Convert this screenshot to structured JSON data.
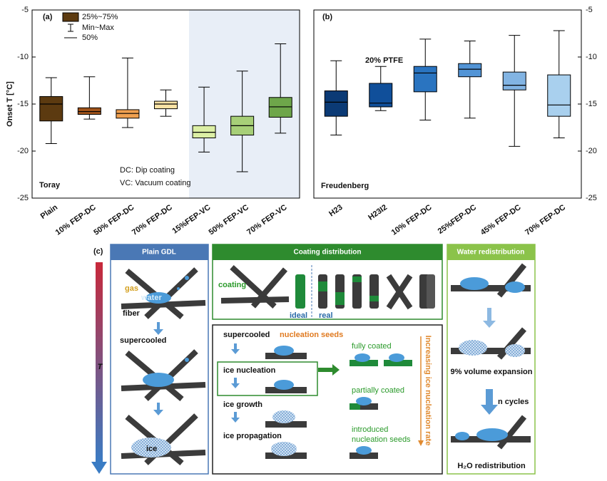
{
  "chart_data": [
    {
      "type": "box",
      "panel_label": "(a)",
      "ylabel": "Onset T [°C]",
      "label": "Toray",
      "notes": [
        "DC: Dip coating",
        "VC: Vacuum coating"
      ],
      "legend": [
        "25%~75%",
        "Min~Max",
        "50%"
      ],
      "categories": [
        "Plain",
        "10% FEP-DC",
        "50% FEP-DC",
        "70% FEP-DC",
        "15%FEP-VC",
        "50% FEP-VC",
        "70% FEP-VC"
      ],
      "boxes": [
        {
          "min": -19.2,
          "q1": -16.8,
          "median": -15.0,
          "q3": -14.2,
          "max": -12.2,
          "color": "#5c3a10"
        },
        {
          "min": -16.6,
          "q1": -16.1,
          "median": -15.8,
          "q3": -15.4,
          "max": -12.1,
          "color": "#a0531a"
        },
        {
          "min": -17.5,
          "q1": -16.5,
          "median": -16.0,
          "q3": -15.6,
          "max": -10.1,
          "color": "#f0a050"
        },
        {
          "min": -16.3,
          "q1": -15.5,
          "median": -15.0,
          "q3": -14.7,
          "max": -13.5,
          "color": "#fbe3a5"
        },
        {
          "min": -20.1,
          "q1": -18.6,
          "median": -18.0,
          "q3": -17.3,
          "max": -13.2,
          "color": "#dcefa5"
        },
        {
          "min": -22.2,
          "q1": -18.3,
          "median": -17.3,
          "q3": -16.3,
          "max": -11.5,
          "color": "#a7cf78"
        },
        {
          "min": -18.1,
          "q1": -16.4,
          "median": -15.3,
          "q3": -14.3,
          "max": -8.6,
          "color": "#6ea64a"
        }
      ],
      "ylim": [
        -25,
        -5
      ],
      "yticks": [
        -5,
        -10,
        -15,
        -20,
        -25
      ]
    },
    {
      "type": "box",
      "panel_label": "(b)",
      "label": "Freudenberg",
      "annotation": "20% PTFE",
      "categories": [
        "H23",
        "H23I2",
        "10% FEP-DC",
        "25%FEP-DC",
        "45% FEP-DC",
        "70% FEP-DC"
      ],
      "boxes": [
        {
          "min": -18.3,
          "q1": -16.3,
          "median": -14.8,
          "q3": -13.6,
          "max": -10.4,
          "color": "#0b3a75"
        },
        {
          "min": -15.7,
          "q1": -15.3,
          "median": -14.9,
          "q3": -12.8,
          "max": -11.0,
          "color": "#104f9a"
        },
        {
          "min": -16.7,
          "q1": -13.7,
          "median": -11.7,
          "q3": -11.0,
          "max": -8.1,
          "color": "#2a74c0"
        },
        {
          "min": -16.5,
          "q1": -12.1,
          "median": -11.3,
          "q3": -10.7,
          "max": -8.3,
          "color": "#5294d6"
        },
        {
          "min": -19.5,
          "q1": -13.5,
          "median": -13.0,
          "q3": -11.6,
          "max": -7.7,
          "color": "#82b4e3"
        },
        {
          "min": -18.6,
          "q1": -16.3,
          "median": -15.1,
          "q3": -11.9,
          "max": -7.2,
          "color": "#a9d0ee"
        }
      ],
      "ylim": [
        -25,
        -5
      ],
      "yticks": [
        -5,
        -10,
        -15,
        -20,
        -25
      ]
    }
  ],
  "diagram": {
    "panel_label": "(c)",
    "axis": "T",
    "plain": {
      "title": "Plain GDL",
      "gas": "gas",
      "water": "water",
      "fiber": "fiber",
      "supercooled": "supercooled",
      "ice": "ice"
    },
    "coating": {
      "title": "Coating distribution",
      "coating": "coating",
      "ideal": "ideal",
      "real": "real"
    },
    "process": {
      "supercooled": "supercooled",
      "seeds": "nucleation seeds",
      "nucleation": "ice nucleation",
      "growth": "ice growth",
      "propagation": "ice propagation",
      "fully": "fully coated",
      "partially": "partially coated",
      "introduced": [
        "introduced",
        "nucleation seeds"
      ],
      "rate": "Increasing ice nucleation rate"
    },
    "water": {
      "title": "Water redistribution",
      "expansion": "9% volume expansion",
      "cycles": "n cycles",
      "result": "H₂O redistribution"
    }
  }
}
